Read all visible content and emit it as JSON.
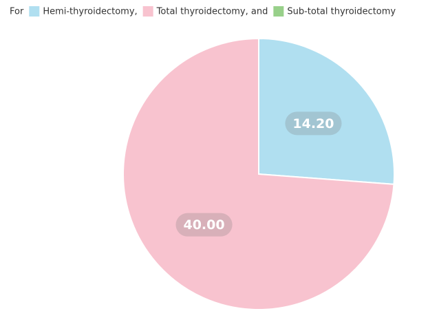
{
  "chart_data": {
    "type": "pie",
    "legend_prefix": "For",
    "categories": [
      "Hemi-thyroidectomy,",
      "Total thyroidectomy, and",
      "Sub-total thyroidectomy"
    ],
    "values": [
      14.2,
      40,
      0
    ],
    "value_labels": [
      "14.20",
      "40.00",
      null
    ],
    "colors": [
      "#b0dff0",
      "#f8c3cf",
      "#98d08a"
    ],
    "legend": "top"
  }
}
